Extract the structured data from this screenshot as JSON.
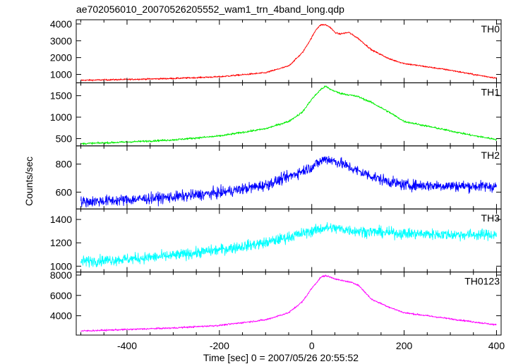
{
  "chart_data": {
    "type": "line",
    "title": "ae702056010_20070526205552_wam1_trn_4band_long.qdp",
    "xlabel": "Time [sec] 0 = 2007/05/26 20:55:52",
    "ylabel": "Counts/sec",
    "xlim": [
      -510,
      410
    ],
    "xticks": [
      -400,
      -200,
      0,
      200,
      400
    ],
    "panels": [
      {
        "name": "TH0",
        "color": "#ff0000",
        "ylim": [
          500,
          4250
        ],
        "yticks": [
          1000,
          2000,
          3000,
          4000
        ],
        "noise": 45,
        "x": [
          -500,
          -400,
          -300,
          -200,
          -100,
          -50,
          -20,
          0,
          10,
          20,
          30,
          40,
          50,
          60,
          80,
          100,
          130,
          170,
          200,
          300,
          350,
          400
        ],
        "y": [
          650,
          700,
          760,
          860,
          1100,
          1500,
          2300,
          3200,
          3700,
          3950,
          3950,
          3800,
          3500,
          3400,
          3500,
          3150,
          2450,
          1900,
          1650,
          1250,
          1000,
          780
        ]
      },
      {
        "name": "TH1",
        "color": "#00ee00",
        "ylim": [
          330,
          1800
        ],
        "yticks": [
          500,
          1000,
          1500
        ],
        "noise": 22,
        "x": [
          -500,
          -400,
          -300,
          -200,
          -100,
          -50,
          -20,
          0,
          20,
          30,
          40,
          60,
          80,
          100,
          130,
          170,
          200,
          300,
          350,
          400
        ],
        "y": [
          380,
          420,
          470,
          560,
          730,
          900,
          1120,
          1420,
          1650,
          1720,
          1650,
          1560,
          1520,
          1480,
          1340,
          1100,
          900,
          680,
          570,
          480
        ]
      },
      {
        "name": "TH2",
        "color": "#0000ff",
        "ylim": [
          480,
          930
        ],
        "yticks": [
          600,
          800
        ],
        "noise": 38,
        "x": [
          -500,
          -400,
          -300,
          -200,
          -100,
          -50,
          0,
          30,
          60,
          100,
          150,
          200,
          300,
          400
        ],
        "y": [
          530,
          545,
          565,
          595,
          650,
          710,
          780,
          840,
          810,
          750,
          690,
          650,
          645,
          640
        ]
      },
      {
        "name": "TH3",
        "color": "#00ffff",
        "ylim": [
          950,
          1490
        ],
        "yticks": [
          1000,
          1200,
          1400
        ],
        "noise": 45,
        "x": [
          -500,
          -400,
          -300,
          -200,
          -100,
          -50,
          0,
          30,
          60,
          100,
          200,
          300,
          400
        ],
        "y": [
          1040,
          1060,
          1090,
          1140,
          1200,
          1250,
          1300,
          1330,
          1320,
          1300,
          1280,
          1270,
          1270
        ]
      },
      {
        "name": "TH0123",
        "color": "#ff00ff",
        "ylim": [
          2100,
          8300
        ],
        "yticks": [
          4000,
          6000,
          8000
        ],
        "noise": 80,
        "x": [
          -500,
          -400,
          -300,
          -200,
          -100,
          -50,
          -20,
          0,
          20,
          30,
          40,
          60,
          80,
          100,
          130,
          170,
          200,
          300,
          350,
          400
        ],
        "y": [
          2500,
          2650,
          2800,
          3050,
          3600,
          4300,
          5400,
          6700,
          7800,
          7950,
          7800,
          7500,
          7350,
          7050,
          5600,
          4800,
          4300,
          3700,
          3400,
          3100
        ]
      }
    ]
  }
}
